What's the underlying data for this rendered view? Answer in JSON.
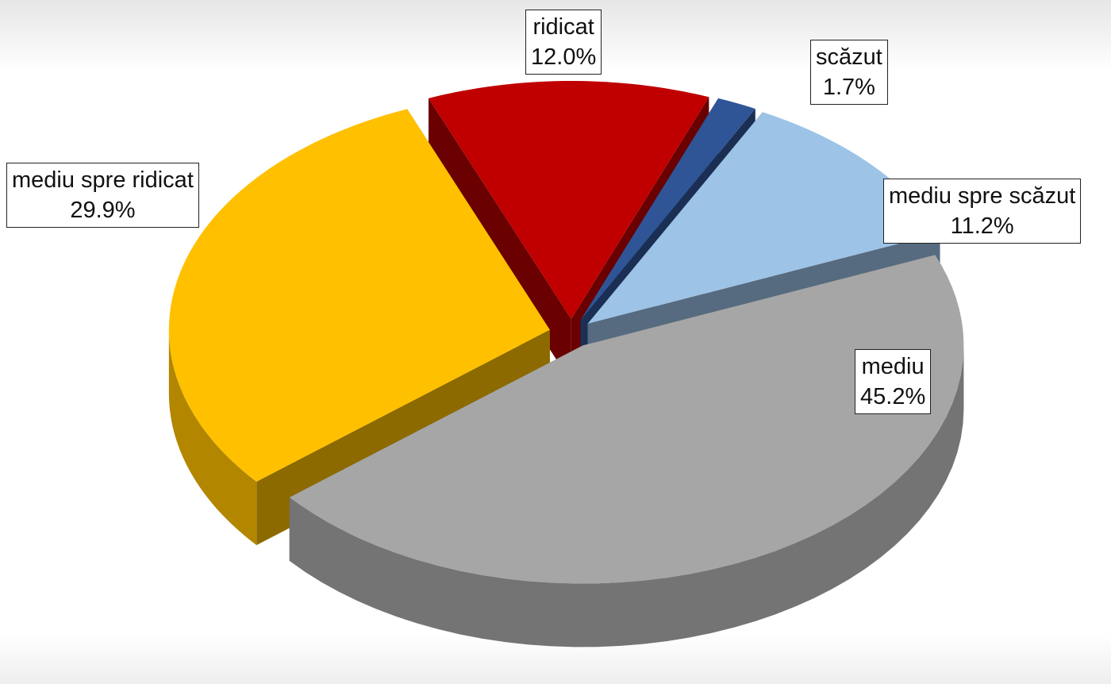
{
  "chart_data": {
    "type": "pie",
    "categories": [
      "ridicat",
      "scăzut",
      "mediu spre scăzut",
      "mediu",
      "mediu spre ridicat"
    ],
    "values": [
      12.0,
      1.7,
      11.2,
      45.2,
      29.9
    ],
    "value_labels": [
      "12.0%",
      "1.7%",
      "11.2%",
      "45.2%",
      "29.9%"
    ],
    "colors": [
      "#c00000",
      "#2f5597",
      "#9dc3e6",
      "#a6a6a6",
      "#ffc000"
    ]
  }
}
